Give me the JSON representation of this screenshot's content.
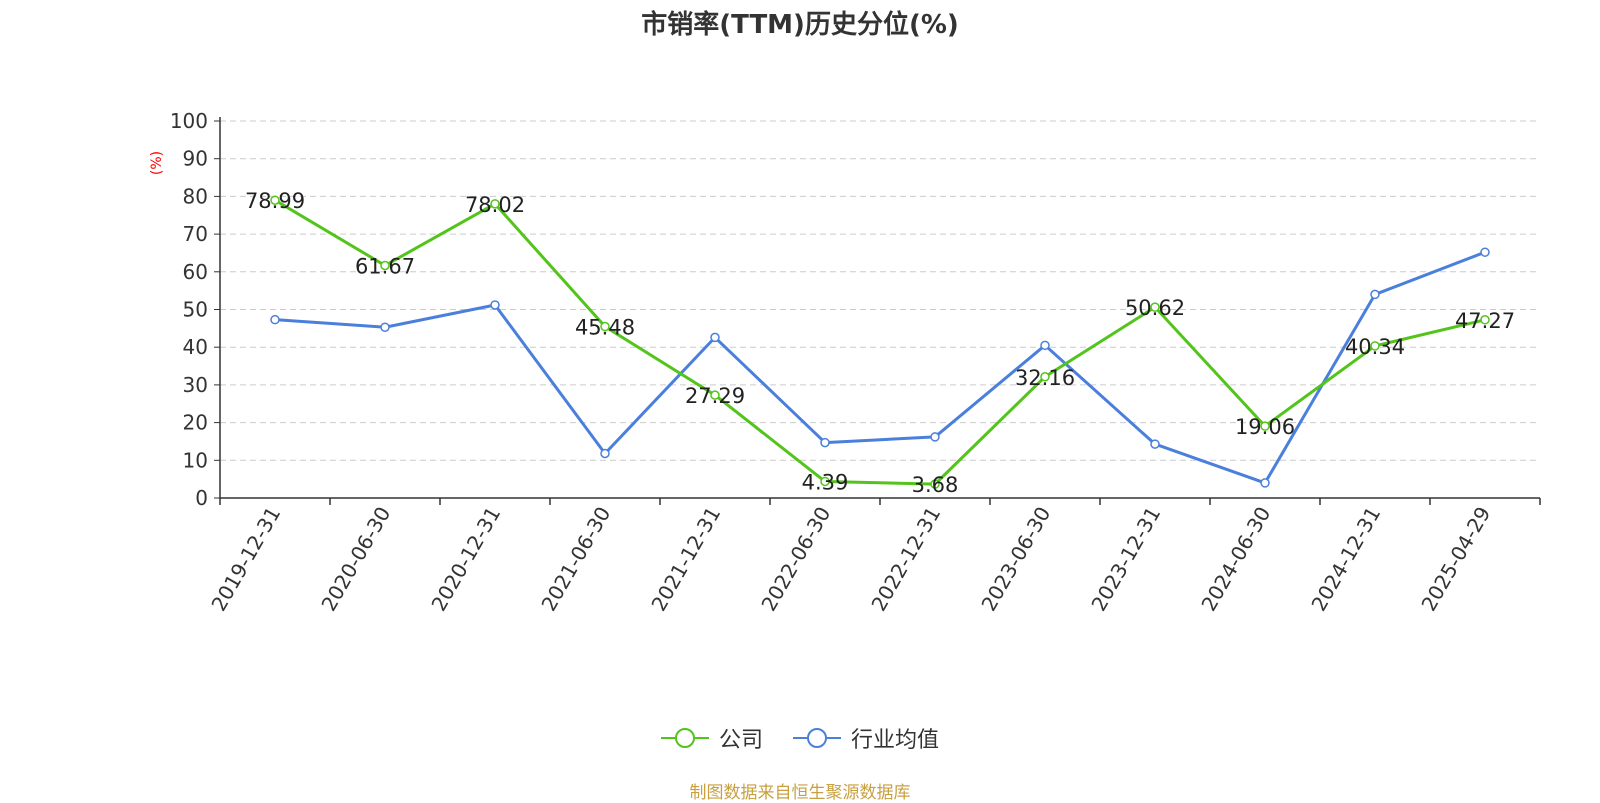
{
  "chart_data": {
    "type": "line",
    "title": "市销率(TTM)历史分位(%)",
    "ylabel": "(%)",
    "xlabel": "",
    "ylim": [
      0,
      100
    ],
    "yticks": [
      0,
      10,
      20,
      30,
      40,
      50,
      60,
      70,
      80,
      90,
      100
    ],
    "grid": true,
    "legend_position": "bottom",
    "categories": [
      "2019-12-31",
      "2020-06-30",
      "2020-12-31",
      "2021-06-30",
      "2021-12-31",
      "2022-06-30",
      "2022-12-31",
      "2023-06-30",
      "2023-12-31",
      "2024-06-30",
      "2024-12-31",
      "2025-04-29"
    ],
    "series": [
      {
        "name": "公司",
        "color": "#52c41a",
        "values": [
          78.99,
          61.67,
          78.02,
          45.48,
          27.29,
          4.39,
          3.68,
          32.16,
          50.62,
          19.06,
          40.34,
          47.27
        ],
        "show_labels": true
      },
      {
        "name": "行业均值",
        "color": "#4a7fdc",
        "values": [
          47.3,
          45.3,
          51.2,
          11.8,
          42.6,
          14.7,
          16.2,
          40.5,
          14.3,
          4.0,
          54.0,
          65.2
        ],
        "show_labels": false
      }
    ]
  },
  "source_note": "制图数据来自恒生聚源数据库"
}
